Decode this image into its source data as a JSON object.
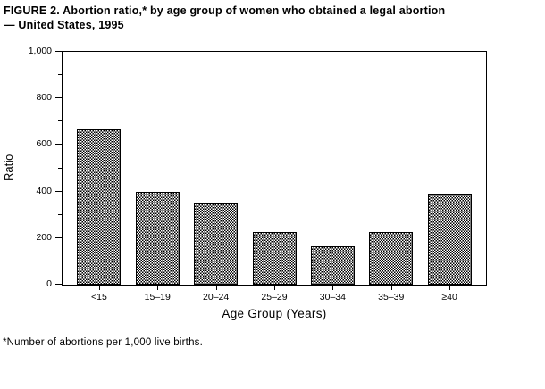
{
  "figure": {
    "title_line1": "FIGURE 2. Abortion ratio,* by age group of women who obtained a legal abortion",
    "title_line2": "— United States, 1995",
    "footnote": "*Number of abortions per 1,000 live births."
  },
  "chart_data": {
    "type": "bar",
    "title": "FIGURE 2. Abortion ratio, by age group of women who obtained a legal abortion — United States, 1995",
    "categories": [
      "<15",
      "15–19",
      "20–24",
      "25–29",
      "30–34",
      "35–39",
      "≥40"
    ],
    "values": [
      665,
      400,
      350,
      225,
      165,
      225,
      390
    ],
    "xlabel": "Age Group (Years)",
    "ylabel": "Ratio",
    "ylim": [
      0,
      1000
    ],
    "ytick_values": [
      0,
      200,
      400,
      600,
      800,
      1000
    ],
    "ytick_labels": [
      "0",
      "200",
      "400",
      "600",
      "800",
      "1,000"
    ],
    "ytick_minor_values": [
      100,
      300,
      500,
      700,
      900
    ],
    "grid": false,
    "legend": "none",
    "frame": true,
    "bar_fill": "black-white-checkerboard-dither",
    "bar_border_color": "#000000",
    "axis_color": "#000000",
    "background_color": "#ffffff"
  }
}
